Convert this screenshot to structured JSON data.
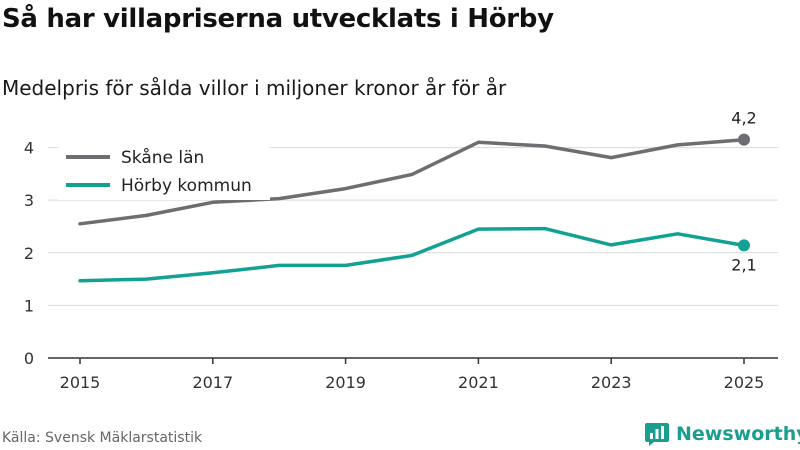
{
  "header": {
    "title": "Så har villapriserna utvecklats i Hörby",
    "subtitle": "Medelpris för sålda villor i miljoner kronor år för år"
  },
  "footer": {
    "source": "Källa: Svensk Mäklarstatistik",
    "brand": "Newsworthy",
    "brand_icon": "newsworthy-logo-icon"
  },
  "colors": {
    "skane": "#6e6d72",
    "horby": "#12a192",
    "grid": "#d9d9d9",
    "axis": "#333333",
    "brand": "#1a9e8f"
  },
  "chart_data": {
    "type": "line",
    "title": "Så har villapriserna utvecklats i Hörby",
    "subtitle": "Medelpris för sålda villor i miljoner kronor år för år",
    "xlabel": "",
    "ylabel": "",
    "x": [
      2015,
      2016,
      2017,
      2018,
      2019,
      2020,
      2021,
      2022,
      2023,
      2024,
      2025
    ],
    "x_ticks": [
      "2015",
      "2017",
      "2019",
      "2021",
      "2023",
      "2025"
    ],
    "y_ticks": [
      "0",
      "1",
      "2",
      "3",
      "4"
    ],
    "ylim": [
      0,
      4.6
    ],
    "grid": "horizontal",
    "legend_position": "top-left",
    "series": [
      {
        "name": "Skåne län",
        "color": "#6e6d72",
        "values": [
          2.55,
          2.71,
          2.96,
          3.03,
          3.22,
          3.49,
          4.1,
          4.03,
          3.81,
          4.05,
          4.15
        ],
        "end_label": "4,2"
      },
      {
        "name": "Hörby kommun",
        "color": "#12a192",
        "values": [
          1.47,
          1.5,
          1.62,
          1.76,
          1.76,
          1.95,
          2.45,
          2.46,
          2.15,
          2.36,
          2.14
        ],
        "end_label": "2,1"
      }
    ]
  }
}
